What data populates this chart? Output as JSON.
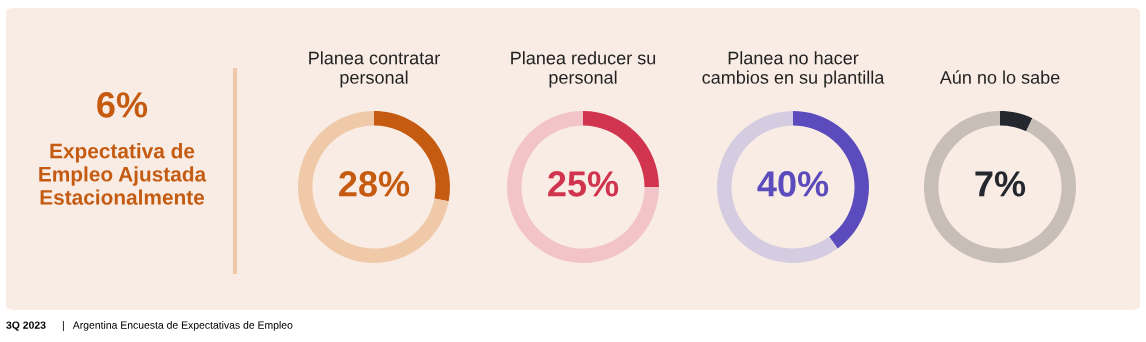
{
  "chart_data": [
    {
      "type": "other",
      "title": "6%",
      "subtitle": "Expectativa de\nEmpleo Ajustada\nEstacionalmente",
      "color": "#c55a11",
      "annotations": [
        "3Q 2023",
        "|   Argentina Encuesta de Expectativas de Empleo"
      ]
    },
    {
      "type": "donut",
      "title": "Planea contratar\npersonal",
      "categories": [
        null,
        null
      ],
      "values": [
        28,
        72
      ],
      "colors": [
        "#c55a11",
        "#f0c9a8"
      ],
      "annotations": [
        "28%"
      ]
    },
    {
      "type": "donut",
      "title": "Planea reducer su\npersonal",
      "categories": [
        null,
        null
      ],
      "values": [
        25,
        75
      ],
      "colors": [
        "#d0344e",
        "#f2c4c8"
      ],
      "annotations": [
        "25%"
      ]
    },
    {
      "type": "donut",
      "title": "Planea no hacer\ncambios en su plantilla",
      "categories": [
        null,
        null
      ],
      "values": [
        40,
        60
      ],
      "colors": [
        "#5b4bbd",
        "#d5cce2"
      ],
      "annotations": [
        "40%"
      ]
    },
    {
      "type": "donut",
      "title": "Aún no lo sabe",
      "categories": [
        null,
        null
      ],
      "values": [
        7,
        93
      ],
      "colors": [
        "#24272e",
        "#c8beb8"
      ],
      "annotations": [
        "7%"
      ]
    }
  ]
}
